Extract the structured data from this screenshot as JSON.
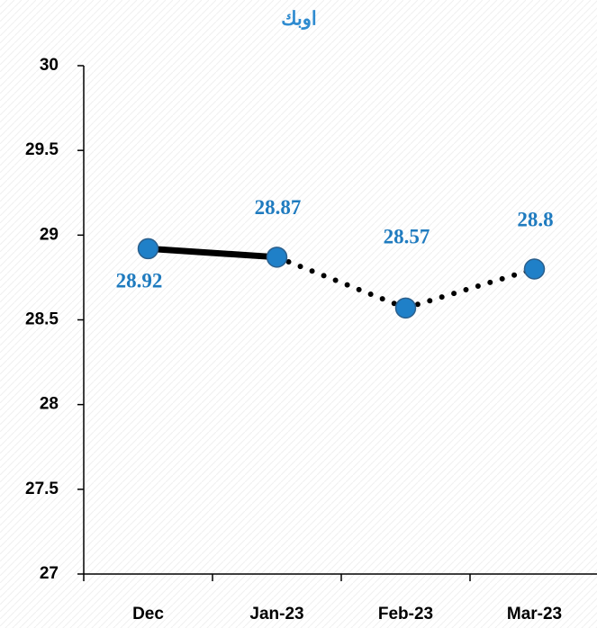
{
  "chart_data": {
    "type": "line",
    "title": "اوبك",
    "categories": [
      "Dec",
      "Jan-23",
      "Feb-23",
      "Mar-23"
    ],
    "series": [
      {
        "color": "#1f80c8",
        "values": [
          28.92,
          28.87,
          28.57,
          28.8
        ]
      }
    ],
    "line_styles": [
      "solid",
      "dotted",
      "dotted"
    ],
    "ylim": [
      27,
      30
    ],
    "yticks": [
      27,
      27.5,
      28,
      28.5,
      29,
      29.5,
      30
    ],
    "grid": false
  }
}
